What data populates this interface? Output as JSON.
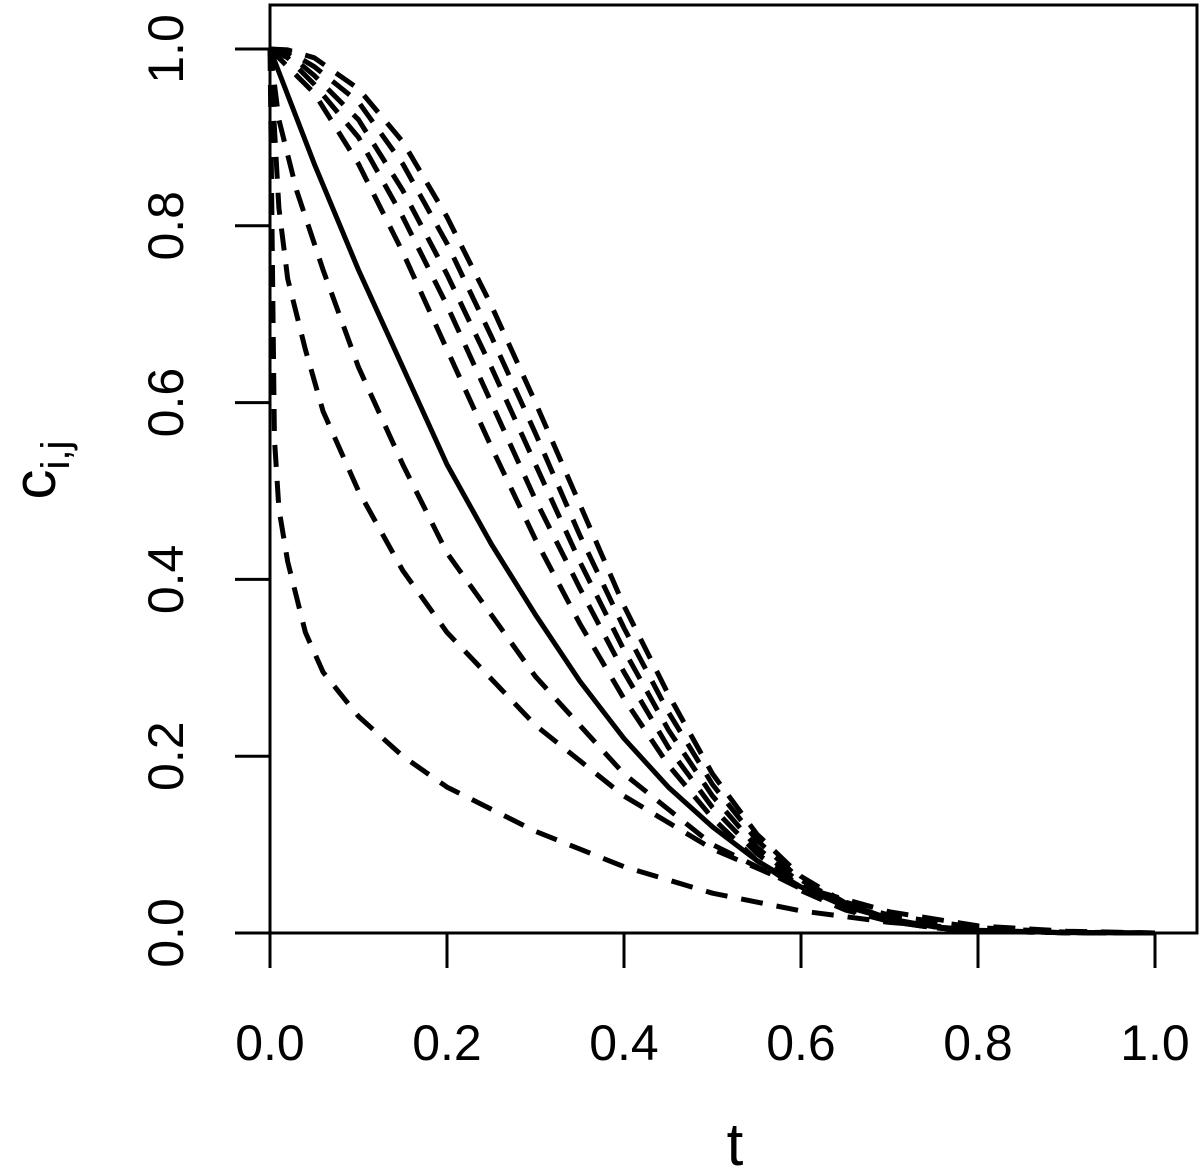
{
  "chart_data": {
    "type": "line",
    "title": "",
    "xlabel": "t",
    "ylabel": {
      "base": "c",
      "subscript": "i,j"
    },
    "xlim": [
      0,
      1
    ],
    "ylim": [
      0,
      1
    ],
    "x_ticks": [
      "0.0",
      "0.2",
      "0.4",
      "0.6",
      "0.8",
      "1.0"
    ],
    "y_ticks": [
      "0.0",
      "0.2",
      "0.4",
      "0.6",
      "0.8",
      "1.0"
    ],
    "x_tick_values": [
      0,
      0.2,
      0.4,
      0.6,
      0.8,
      1.0
    ],
    "y_tick_values": [
      0,
      0.2,
      0.4,
      0.6,
      0.8,
      1.0
    ],
    "grid": false,
    "legend": "none",
    "line_color": "#000000",
    "series": [
      {
        "style": "dashed",
        "points": [
          [
            0,
            1.0
          ],
          [
            0.005,
            0.56
          ],
          [
            0.01,
            0.48
          ],
          [
            0.02,
            0.42
          ],
          [
            0.04,
            0.34
          ],
          [
            0.06,
            0.295
          ],
          [
            0.1,
            0.245
          ],
          [
            0.15,
            0.2
          ],
          [
            0.2,
            0.165
          ],
          [
            0.3,
            0.115
          ],
          [
            0.4,
            0.075
          ],
          [
            0.5,
            0.045
          ],
          [
            0.6,
            0.025
          ],
          [
            0.7,
            0.012
          ],
          [
            0.8,
            0.004
          ],
          [
            0.9,
            0.001
          ],
          [
            1.0,
            0.0
          ]
        ]
      },
      {
        "style": "dashed",
        "points": [
          [
            0,
            1.0
          ],
          [
            0.01,
            0.82
          ],
          [
            0.02,
            0.74
          ],
          [
            0.04,
            0.66
          ],
          [
            0.06,
            0.59
          ],
          [
            0.1,
            0.5
          ],
          [
            0.15,
            0.41
          ],
          [
            0.2,
            0.34
          ],
          [
            0.3,
            0.235
          ],
          [
            0.4,
            0.155
          ],
          [
            0.5,
            0.095
          ],
          [
            0.6,
            0.052
          ],
          [
            0.7,
            0.024
          ],
          [
            0.8,
            0.008
          ],
          [
            0.9,
            0.002
          ],
          [
            1.0,
            0.0
          ]
        ]
      },
      {
        "style": "dashed",
        "points": [
          [
            0,
            1.0
          ],
          [
            0.01,
            0.92
          ],
          [
            0.03,
            0.84
          ],
          [
            0.06,
            0.75
          ],
          [
            0.1,
            0.64
          ],
          [
            0.15,
            0.53
          ],
          [
            0.2,
            0.43
          ],
          [
            0.3,
            0.29
          ],
          [
            0.4,
            0.18
          ],
          [
            0.5,
            0.1
          ],
          [
            0.6,
            0.05
          ],
          [
            0.7,
            0.02
          ],
          [
            0.8,
            0.006
          ],
          [
            0.9,
            0.001
          ],
          [
            1.0,
            0.0
          ]
        ]
      },
      {
        "style": "solid",
        "points": [
          [
            0,
            1.0
          ],
          [
            0.05,
            0.87
          ],
          [
            0.1,
            0.75
          ],
          [
            0.15,
            0.64
          ],
          [
            0.2,
            0.53
          ],
          [
            0.25,
            0.44
          ],
          [
            0.3,
            0.36
          ],
          [
            0.35,
            0.285
          ],
          [
            0.4,
            0.22
          ],
          [
            0.45,
            0.165
          ],
          [
            0.5,
            0.12
          ],
          [
            0.55,
            0.082
          ],
          [
            0.6,
            0.052
          ],
          [
            0.65,
            0.03
          ],
          [
            0.7,
            0.016
          ],
          [
            0.75,
            0.007
          ],
          [
            0.8,
            0.003
          ],
          [
            0.9,
            0.0005
          ],
          [
            1.0,
            0.0
          ]
        ]
      },
      {
        "style": "dashed",
        "points": [
          [
            0,
            1.0
          ],
          [
            0.02,
            0.98
          ],
          [
            0.05,
            0.95
          ],
          [
            0.1,
            0.87
          ],
          [
            0.15,
            0.77
          ],
          [
            0.2,
            0.66
          ],
          [
            0.25,
            0.55
          ],
          [
            0.3,
            0.445
          ],
          [
            0.35,
            0.35
          ],
          [
            0.4,
            0.265
          ],
          [
            0.45,
            0.19
          ],
          [
            0.5,
            0.13
          ],
          [
            0.55,
            0.082
          ],
          [
            0.6,
            0.048
          ],
          [
            0.65,
            0.026
          ],
          [
            0.7,
            0.013
          ],
          [
            0.75,
            0.006
          ],
          [
            0.8,
            0.002
          ],
          [
            0.9,
            0.0003
          ],
          [
            1.0,
            0.0
          ]
        ]
      },
      {
        "style": "dashed",
        "points": [
          [
            0,
            1.0
          ],
          [
            0.02,
            0.99
          ],
          [
            0.05,
            0.96
          ],
          [
            0.1,
            0.9
          ],
          [
            0.15,
            0.81
          ],
          [
            0.2,
            0.71
          ],
          [
            0.25,
            0.6
          ],
          [
            0.3,
            0.49
          ],
          [
            0.35,
            0.39
          ],
          [
            0.4,
            0.295
          ],
          [
            0.45,
            0.21
          ],
          [
            0.5,
            0.142
          ],
          [
            0.55,
            0.09
          ],
          [
            0.6,
            0.052
          ],
          [
            0.65,
            0.028
          ],
          [
            0.7,
            0.013
          ],
          [
            0.75,
            0.006
          ],
          [
            0.8,
            0.002
          ],
          [
            0.9,
            0.0003
          ],
          [
            1.0,
            0.0
          ]
        ]
      },
      {
        "style": "dashed",
        "points": [
          [
            0,
            1.0
          ],
          [
            0.02,
            0.995
          ],
          [
            0.05,
            0.97
          ],
          [
            0.1,
            0.92
          ],
          [
            0.15,
            0.84
          ],
          [
            0.2,
            0.745
          ],
          [
            0.25,
            0.64
          ],
          [
            0.3,
            0.53
          ],
          [
            0.35,
            0.42
          ],
          [
            0.4,
            0.32
          ],
          [
            0.45,
            0.23
          ],
          [
            0.5,
            0.155
          ],
          [
            0.55,
            0.097
          ],
          [
            0.6,
            0.056
          ],
          [
            0.65,
            0.03
          ],
          [
            0.7,
            0.014
          ],
          [
            0.75,
            0.006
          ],
          [
            0.8,
            0.002
          ],
          [
            0.9,
            0.0003
          ],
          [
            1.0,
            0.0
          ]
        ]
      },
      {
        "style": "dashed",
        "points": [
          [
            0,
            1.0
          ],
          [
            0.02,
            0.998
          ],
          [
            0.05,
            0.98
          ],
          [
            0.1,
            0.94
          ],
          [
            0.15,
            0.87
          ],
          [
            0.2,
            0.78
          ],
          [
            0.25,
            0.675
          ],
          [
            0.3,
            0.565
          ],
          [
            0.35,
            0.45
          ],
          [
            0.4,
            0.345
          ],
          [
            0.45,
            0.25
          ],
          [
            0.5,
            0.168
          ],
          [
            0.55,
            0.105
          ],
          [
            0.6,
            0.06
          ],
          [
            0.65,
            0.032
          ],
          [
            0.7,
            0.015
          ],
          [
            0.75,
            0.006
          ],
          [
            0.8,
            0.002
          ],
          [
            0.9,
            0.0003
          ],
          [
            1.0,
            0.0
          ]
        ]
      },
      {
        "style": "dashed",
        "points": [
          [
            0,
            1.0
          ],
          [
            0.02,
            0.999
          ],
          [
            0.05,
            0.99
          ],
          [
            0.1,
            0.955
          ],
          [
            0.15,
            0.895
          ],
          [
            0.2,
            0.81
          ],
          [
            0.25,
            0.71
          ],
          [
            0.3,
            0.6
          ],
          [
            0.35,
            0.485
          ],
          [
            0.4,
            0.37
          ],
          [
            0.45,
            0.27
          ],
          [
            0.5,
            0.18
          ],
          [
            0.55,
            0.112
          ],
          [
            0.6,
            0.064
          ],
          [
            0.65,
            0.034
          ],
          [
            0.7,
            0.016
          ],
          [
            0.75,
            0.007
          ],
          [
            0.8,
            0.002
          ],
          [
            0.9,
            0.0003
          ],
          [
            1.0,
            0.0
          ]
        ]
      }
    ]
  }
}
